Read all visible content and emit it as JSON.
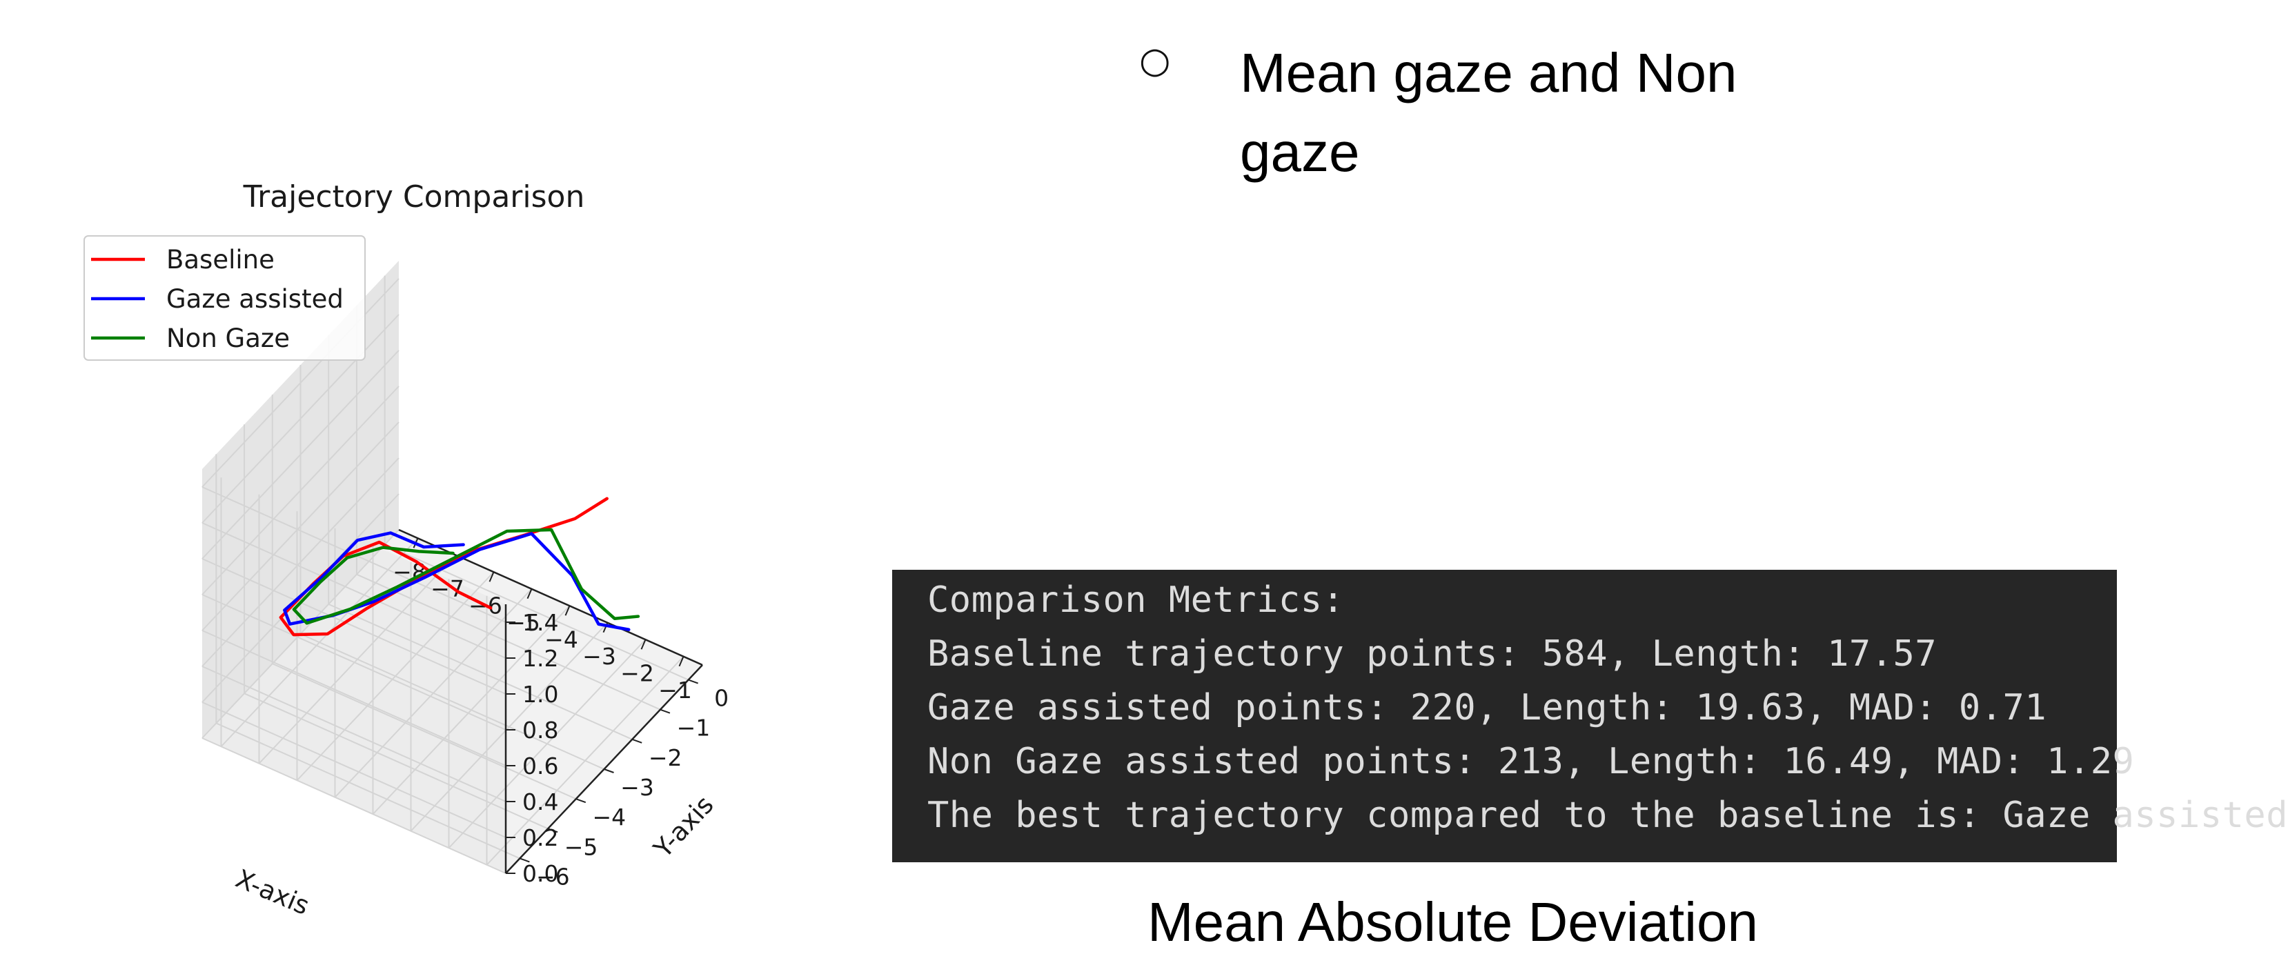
{
  "chart_data": {
    "type": "line3d",
    "title": "Trajectory Comparison",
    "xlabel": "X-axis",
    "ylabel": "Y-axis",
    "zlabel": "",
    "xlim": [
      -8.5,
      -0.5
    ],
    "ylim": [
      -6.5,
      0.5
    ],
    "zlim": [
      0.0,
      1.5
    ],
    "x_ticks": [
      "−8",
      "−7",
      "−6",
      "−5",
      "−4",
      "−3",
      "−2",
      "−1"
    ],
    "y_ticks": [
      "0",
      "−1",
      "−2",
      "−3",
      "−4",
      "−5",
      "−6"
    ],
    "z_ticks": [
      "0.0",
      "0.2",
      "0.4",
      "0.6",
      "0.8",
      "1.0",
      "1.2",
      "1.4"
    ],
    "grid": true,
    "legend_position": "upper-left",
    "series": [
      {
        "name": "Baseline",
        "color": "#ff0000",
        "points": [
          [
            -2.6,
            -4.2,
            0.9
          ],
          [
            -3.0,
            -4.8,
            1.05
          ],
          [
            -3.6,
            -5.5,
            1.28
          ],
          [
            -4.5,
            -5.6,
            1.32
          ],
          [
            -5.3,
            -5.8,
            1.2
          ],
          [
            -6.0,
            -5.9,
            1.0
          ],
          [
            -6.8,
            -6.0,
            0.75
          ],
          [
            -7.2,
            -5.0,
            0.45
          ],
          [
            -6.9,
            -4.2,
            0.35
          ],
          [
            -6.3,
            -3.6,
            0.45
          ],
          [
            -5.4,
            -3.0,
            0.6
          ],
          [
            -4.4,
            -2.4,
            0.75
          ],
          [
            -3.4,
            -1.9,
            0.85
          ],
          [
            -2.6,
            -1.2,
            0.9
          ],
          [
            -2.2,
            -0.6,
            0.95
          ]
        ]
      },
      {
        "name": "Gaze assisted",
        "color": "#0000ff",
        "points": [
          [
            -2.8,
            -4.9,
            1.35
          ],
          [
            -3.4,
            -5.5,
            1.38
          ],
          [
            -4.2,
            -5.6,
            1.4
          ],
          [
            -5.0,
            -5.7,
            1.3
          ],
          [
            -5.8,
            -5.9,
            1.05
          ],
          [
            -6.7,
            -6.0,
            0.8
          ],
          [
            -7.3,
            -5.0,
            0.5
          ],
          [
            -6.9,
            -4.0,
            0.42
          ],
          [
            -6.2,
            -3.5,
            0.48
          ],
          [
            -5.3,
            -2.9,
            0.6
          ],
          [
            -4.3,
            -2.3,
            0.75
          ],
          [
            -3.3,
            -1.8,
            0.85
          ],
          [
            -2.6,
            -1.3,
            0.6
          ],
          [
            -2.2,
            -0.9,
            0.3
          ],
          [
            -1.7,
            -0.5,
            0.25
          ]
        ]
      },
      {
        "name": "Non Gaze",
        "color": "#008000",
        "points": [
          [
            -3.0,
            -5.0,
            1.3
          ],
          [
            -3.6,
            -5.4,
            1.32
          ],
          [
            -4.4,
            -5.6,
            1.3
          ],
          [
            -5.2,
            -5.8,
            1.2
          ],
          [
            -5.9,
            -5.8,
            1.0
          ],
          [
            -6.6,
            -5.8,
            0.78
          ],
          [
            -7.0,
            -4.8,
            0.5
          ],
          [
            -6.6,
            -3.8,
            0.45
          ],
          [
            -5.8,
            -3.2,
            0.55
          ],
          [
            -4.8,
            -2.6,
            0.7
          ],
          [
            -3.8,
            -2.0,
            0.85
          ],
          [
            -3.0,
            -1.5,
            0.85
          ],
          [
            -2.5,
            -1.1,
            0.5
          ],
          [
            -2.0,
            -0.6,
            0.3
          ],
          [
            -1.6,
            -0.3,
            0.3
          ]
        ]
      }
    ]
  },
  "slide": {
    "bullet_symbol": "○",
    "bullet_text": "Mean gaze and Non gaze",
    "caption": "Mean Absolute Deviation"
  },
  "terminal": {
    "lines": [
      "Comparison Metrics:",
      "Baseline trajectory points: 584, Length: 17.57",
      "Gaze assisted points: 220, Length: 19.63, MAD: 0.71",
      "Non Gaze assisted points: 213, Length: 16.49, MAD: 1.29",
      "The best trajectory compared to the baseline is: Gaze assisted"
    ]
  }
}
